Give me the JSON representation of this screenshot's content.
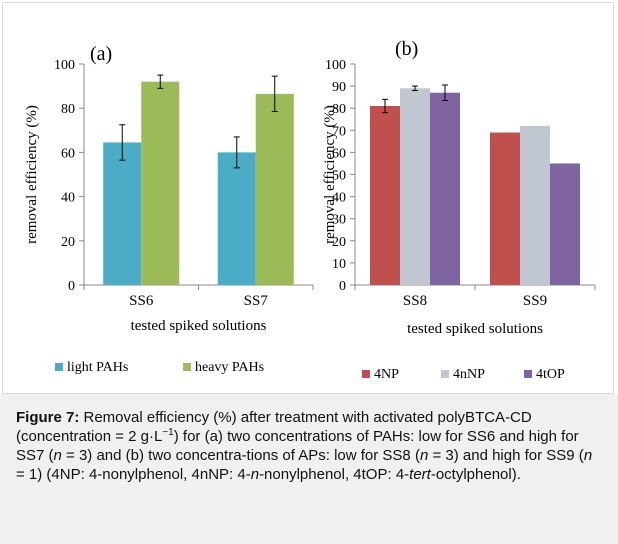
{
  "colors": {
    "light_pahs": "#4bacc6",
    "heavy_pahs": "#9bbb59",
    "4np": "#c0504d",
    "4nnp": "#c0c7d0",
    "4top": "#8064a2",
    "axis": "#888888",
    "caption_bg": "#f0f0f0"
  },
  "chart_data": [
    {
      "type": "bar",
      "panel_label": "(a)",
      "ylabel": "removal efficiency (%)",
      "xlabel": "tested spiked solutions",
      "ylim": [
        0,
        100
      ],
      "yticks": [
        0,
        20,
        40,
        60,
        80,
        100
      ],
      "categories": [
        "SS6",
        "SS7"
      ],
      "series": [
        {
          "name": "light PAHs",
          "color": "#4bacc6",
          "values": [
            64.5,
            60
          ],
          "errors": [
            8,
            7
          ]
        },
        {
          "name": "heavy PAHs",
          "color": "#9bbb59",
          "values": [
            92,
            86.5
          ],
          "errors": [
            3,
            8
          ]
        }
      ],
      "grid": false,
      "legend": "bottom"
    },
    {
      "type": "bar",
      "panel_label": "(b)",
      "ylabel": "removal efficiency (%)",
      "xlabel": "tested spiked solutions",
      "ylim": [
        0,
        100
      ],
      "yticks": [
        0,
        10,
        20,
        30,
        40,
        50,
        60,
        70,
        80,
        90,
        100
      ],
      "categories": [
        "SS8",
        "SS9"
      ],
      "series": [
        {
          "name": "4NP",
          "color": "#c0504d",
          "values": [
            81,
            69
          ],
          "errors": [
            3,
            null
          ]
        },
        {
          "name": "4nNP",
          "color": "#c0c7d0",
          "values": [
            89,
            72
          ],
          "errors": [
            1,
            null
          ]
        },
        {
          "name": "4tOP",
          "color": "#8064a2",
          "values": [
            87,
            55
          ],
          "errors": [
            3.5,
            null
          ]
        }
      ],
      "grid": false,
      "legend": "bottom"
    }
  ],
  "caption": {
    "label": "Figure 7:",
    "text_1": " Removal efficiency (%) after treatment with activated polyBTCA-CD (concentration = 2 g·L",
    "sup_1": "−1",
    "text_2": ") for (a) two concentrations of PAHs: low for SS6 and high for SS7 (",
    "n_1": "n",
    "text_3": " = 3) and (b) two concentra-tions of APs: low for SS8 (",
    "n_2": "n",
    "text_4": " = 3) and high for SS9 (",
    "n_3": "n",
    "text_5": " = 1) (4NP: 4-nonylphenol, 4nNP: 4-",
    "n_4": "n",
    "text_6": "-nonylphenol, 4tOP: 4-",
    "tert": "tert",
    "text_7": "-octylphenol)."
  }
}
